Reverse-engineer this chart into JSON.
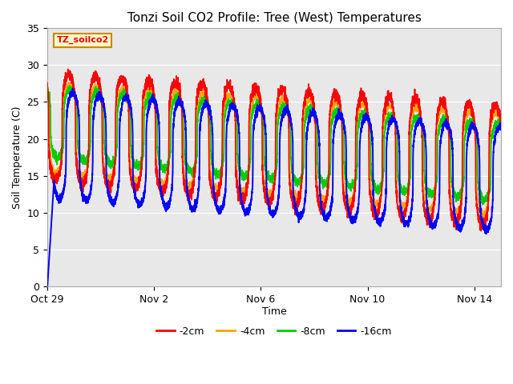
{
  "title": "Tonzi Soil CO2 Profile: Tree (West) Temperatures",
  "xlabel": "Time",
  "ylabel": "Soil Temperature (C)",
  "ylim": [
    0,
    35
  ],
  "xlim_days": [
    0,
    17
  ],
  "legend_labels": [
    "-2cm",
    "-4cm",
    "-8cm",
    "-16cm"
  ],
  "legend_colors": [
    "#ff0000",
    "#ffa500",
    "#00cc00",
    "#0000ff"
  ],
  "watermark_text": "TZ_soilco2",
  "watermark_bg": "#ffffcc",
  "watermark_border": "#cc8800",
  "bg_inner": "#e8e8e8",
  "bg_band_light": "#f5f5f5",
  "grid_color": "#ffffff",
  "tick_labels_x": [
    "Oct 29",
    "Nov 2",
    "Nov 6",
    "Nov 10",
    "Nov 14"
  ],
  "tick_positions_x": [
    0,
    4,
    8,
    12,
    16
  ],
  "yticks": [
    0,
    5,
    10,
    15,
    20,
    25,
    30,
    35
  ]
}
